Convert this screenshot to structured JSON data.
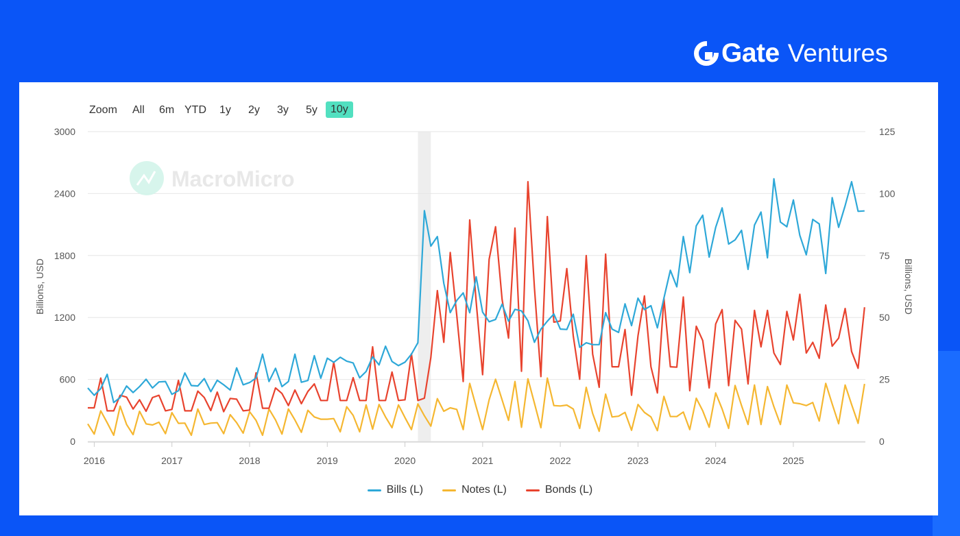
{
  "brand": {
    "name": "Gate",
    "suffix": "Ventures"
  },
  "zoom": {
    "label": "Zoom",
    "options": [
      "All",
      "6m",
      "YTD",
      "1y",
      "2y",
      "3y",
      "5y",
      "10y"
    ],
    "selected": "10y",
    "active_color": "#52e0c0"
  },
  "watermark": "MacroMicro",
  "chart_data": {
    "type": "line",
    "start": "2015-12",
    "frequency": "monthly",
    "x_ticks": [
      "2016",
      "2017",
      "2018",
      "2019",
      "2020",
      "2021",
      "2022",
      "2023",
      "2024",
      "2025"
    ],
    "ylabel_left": "Billions, USD",
    "ylabel_right": "Billions, USD",
    "ylim_left": [
      0,
      3000
    ],
    "yticks_left": [
      "0",
      "600",
      "1200",
      "1800",
      "2400",
      "3000"
    ],
    "ylim_right": [
      0,
      125
    ],
    "yticks_right": [
      "0",
      "25",
      "50",
      "75",
      "100",
      "125"
    ],
    "grid": true,
    "legend_position": "bottom",
    "shaded_period": {
      "start": "2020-03",
      "end": "2020-05",
      "color": "#eeeeee"
    },
    "series": [
      {
        "name": "Bills (L)",
        "color": "#2ea8d8",
        "values": [
          518,
          447,
          511,
          650,
          376,
          425,
          536,
          473,
          531,
          602,
          518,
          576,
          580,
          456,
          491,
          663,
          541,
          537,
          608,
          482,
          592,
          548,
          498,
          712,
          548,
          570,
          614,
          845,
          580,
          708,
          531,
          580,
          845,
          573,
          590,
          830,
          612,
          806,
          766,
          815,
          777,
          760,
          616,
          677,
          819,
          741,
          922,
          774,
          734,
          767,
          845,
          955,
          2234,
          1891,
          1984,
          1531,
          1247,
          1365,
          1438,
          1246,
          1594,
          1252,
          1159,
          1181,
          1329,
          1164,
          1279,
          1264,
          1168,
          960,
          1087,
          1164,
          1234,
          1088,
          1084,
          1232,
          911,
          955,
          937,
          937,
          1247,
          1088,
          1055,
          1332,
          1121,
          1387,
          1276,
          1314,
          1100,
          1387,
          1657,
          1497,
          1984,
          1634,
          2088,
          2190,
          1785,
          2073,
          2261,
          1911,
          1951,
          2044,
          1666,
          2095,
          2221,
          1778,
          2543,
          2124,
          2079,
          2338,
          1995,
          1807,
          2150,
          2106,
          1626,
          2360,
          2073,
          2283,
          2515,
          2228,
          2232
        ]
      },
      {
        "name": "Notes (L)",
        "color": "#f5b731",
        "values": [
          170,
          71,
          296,
          181,
          60,
          341,
          164,
          66,
          292,
          170,
          159,
          186,
          75,
          279,
          175,
          177,
          60,
          314,
          164,
          177,
          181,
          75,
          259,
          181,
          80,
          288,
          204,
          60,
          314,
          208,
          71,
          314,
          208,
          88,
          301,
          237,
          215,
          215,
          221,
          93,
          336,
          252,
          93,
          354,
          119,
          358,
          237,
          133,
          354,
          230,
          115,
          363,
          248,
          148,
          414,
          292,
          325,
          310,
          115,
          562,
          336,
          115,
          403,
          602,
          403,
          204,
          580,
          137,
          606,
          370,
          133,
          613,
          347,
          343,
          352,
          314,
          126,
          524,
          270,
          98,
          458,
          237,
          244,
          281,
          108,
          358,
          281,
          237,
          104,
          436,
          241,
          241,
          285,
          115,
          418,
          297,
          137,
          469,
          314,
          126,
          542,
          347,
          164,
          546,
          164,
          531,
          336,
          164,
          546,
          374,
          365,
          347,
          376,
          197,
          562,
          363,
          171,
          546,
          358,
          175,
          557
        ]
      },
      {
        "name": "Bonds (L)",
        "color": "#e8432e",
        "values": [
          325,
          325,
          613,
          296,
          296,
          447,
          429,
          314,
          403,
          292,
          425,
          447,
          296,
          310,
          591,
          296,
          296,
          487,
          425,
          299,
          478,
          288,
          416,
          409,
          296,
          303,
          664,
          321,
          321,
          518,
          464,
          347,
          498,
          365,
          484,
          557,
          396,
          396,
          768,
          396,
          396,
          617,
          396,
          396,
          916,
          396,
          396,
          672,
          396,
          403,
          849,
          396,
          418,
          812,
          1460,
          960,
          1829,
          1221,
          580,
          2145,
          1354,
          646,
          1763,
          2079,
          1376,
          1000,
          2066,
          679,
          2515,
          1486,
          628,
          2177,
          1155,
          1166,
          1674,
          1022,
          602,
          1800,
          845,
          524,
          1814,
          723,
          723,
          1084,
          447,
          1022,
          1409,
          723,
          469,
          1387,
          723,
          719,
          1398,
          491,
          1115,
          977,
          518,
          1137,
          1276,
          540,
          1172,
          1088,
          557,
          1269,
          916,
          1269,
          856,
          745,
          1259,
          982,
          1425,
          856,
          960,
          805,
          1321,
          922,
          1000,
          1287,
          871,
          708,
          1299
        ]
      }
    ]
  }
}
